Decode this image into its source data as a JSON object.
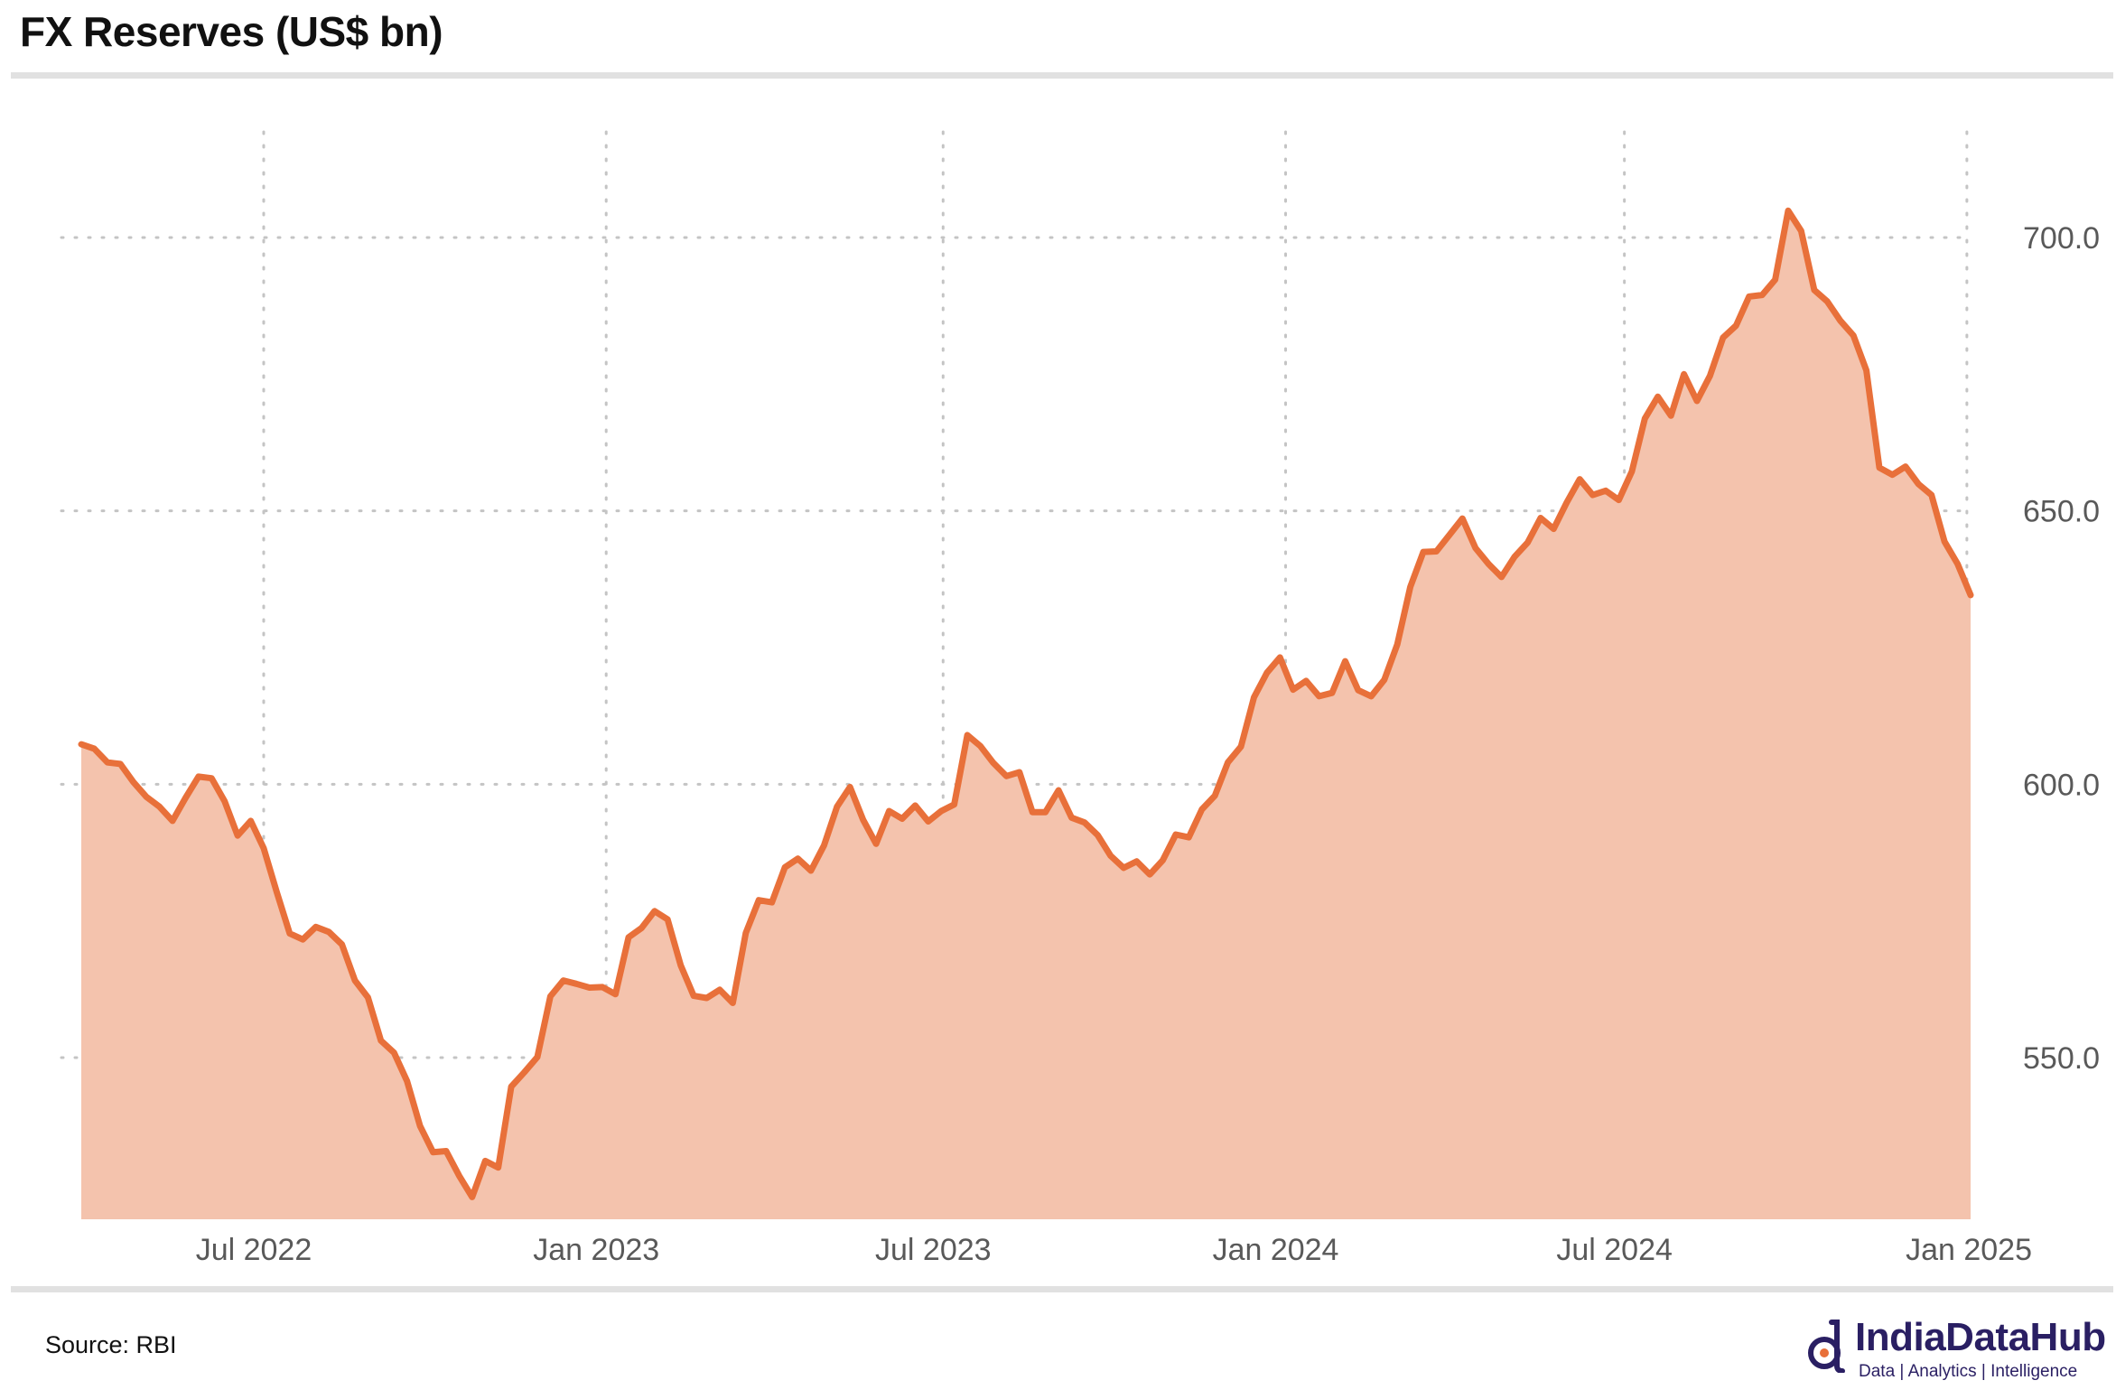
{
  "header": {
    "title": "FX Reserves (US$ bn)"
  },
  "footer": {
    "source": "Source: RBI",
    "brand": "IndiaDataHub",
    "tagline": "Data | Analytics | Intelligence"
  },
  "colors": {
    "line": "#e8703a",
    "fill": "#f4c3ad",
    "grid": "#c4c4c4",
    "axis_text": "#595959",
    "brand": "#2a1f63"
  },
  "chart_data": {
    "type": "area",
    "title": "FX Reserves (US$ bn)",
    "xlabel": "",
    "ylabel": "",
    "grid": true,
    "y_axis_side": "right",
    "ylim": [
      520,
      720
    ],
    "yticks": [
      550,
      600,
      650,
      700
    ],
    "ytick_labels": [
      "550.0",
      "600.0",
      "650.0",
      "700.0"
    ],
    "xticks": [
      "2022-07-01",
      "2023-01-01",
      "2023-07-01",
      "2024-01-01",
      "2024-07-01",
      "2025-01-01"
    ],
    "xtick_labels": [
      "Jul 2022",
      "Jan 2023",
      "Jul 2023",
      "Jan 2024",
      "Jul 2024",
      "Jan 2025"
    ],
    "xlim": [
      "2022-03-25",
      "2025-01-03"
    ],
    "series": [
      {
        "values": [
          [
            "2022-03-25",
            607.3
          ],
          [
            "2022-04-01",
            606.5
          ],
          [
            "2022-04-08",
            604.0
          ],
          [
            "2022-04-15",
            603.7
          ],
          [
            "2022-04-22",
            600.4
          ],
          [
            "2022-04-29",
            597.7
          ],
          [
            "2022-05-06",
            595.9
          ],
          [
            "2022-05-13",
            593.3
          ],
          [
            "2022-05-20",
            597.5
          ],
          [
            "2022-05-27",
            601.4
          ],
          [
            "2022-06-03",
            601.1
          ],
          [
            "2022-06-10",
            596.9
          ],
          [
            "2022-06-17",
            590.6
          ],
          [
            "2022-06-24",
            593.3
          ],
          [
            "2022-07-01",
            588.3
          ],
          [
            "2022-07-08",
            580.3
          ],
          [
            "2022-07-15",
            572.7
          ],
          [
            "2022-07-22",
            571.6
          ],
          [
            "2022-07-29",
            573.9
          ],
          [
            "2022-08-05",
            573.0
          ],
          [
            "2022-08-12",
            570.7
          ],
          [
            "2022-08-19",
            564.1
          ],
          [
            "2022-08-26",
            561.0
          ],
          [
            "2022-09-02",
            553.1
          ],
          [
            "2022-09-09",
            550.9
          ],
          [
            "2022-09-16",
            545.7
          ],
          [
            "2022-09-23",
            537.5
          ],
          [
            "2022-09-30",
            532.7
          ],
          [
            "2022-10-07",
            532.9
          ],
          [
            "2022-10-14",
            528.4
          ],
          [
            "2022-10-21",
            524.5
          ],
          [
            "2022-10-28",
            531.1
          ],
          [
            "2022-11-04",
            529.9
          ],
          [
            "2022-11-11",
            544.7
          ],
          [
            "2022-11-18",
            547.3
          ],
          [
            "2022-11-25",
            550.1
          ],
          [
            "2022-12-02",
            561.2
          ],
          [
            "2022-12-09",
            564.1
          ],
          [
            "2022-12-16",
            563.5
          ],
          [
            "2022-12-23",
            562.8
          ],
          [
            "2022-12-30",
            562.9
          ],
          [
            "2023-01-06",
            561.6
          ],
          [
            "2023-01-13",
            572.0
          ],
          [
            "2023-01-20",
            573.7
          ],
          [
            "2023-01-27",
            576.8
          ],
          [
            "2023-02-03",
            575.3
          ],
          [
            "2023-02-10",
            566.9
          ],
          [
            "2023-02-17",
            561.3
          ],
          [
            "2023-02-24",
            560.9
          ],
          [
            "2023-03-03",
            562.4
          ],
          [
            "2023-03-10",
            560.0
          ],
          [
            "2023-03-17",
            572.8
          ],
          [
            "2023-03-24",
            578.8
          ],
          [
            "2023-03-31",
            578.4
          ],
          [
            "2023-04-07",
            584.8
          ],
          [
            "2023-04-14",
            586.4
          ],
          [
            "2023-04-21",
            584.2
          ],
          [
            "2023-04-28",
            588.8
          ],
          [
            "2023-05-05",
            595.9
          ],
          [
            "2023-05-12",
            599.5
          ],
          [
            "2023-05-19",
            593.5
          ],
          [
            "2023-05-26",
            589.1
          ],
          [
            "2023-06-02",
            595.1
          ],
          [
            "2023-06-09",
            593.7
          ],
          [
            "2023-06-16",
            596.1
          ],
          [
            "2023-06-23",
            593.2
          ],
          [
            "2023-06-30",
            595.1
          ],
          [
            "2023-07-07",
            596.3
          ],
          [
            "2023-07-14",
            609.0
          ],
          [
            "2023-07-21",
            607.0
          ],
          [
            "2023-07-28",
            603.9
          ],
          [
            "2023-08-04",
            601.5
          ],
          [
            "2023-08-11",
            602.2
          ],
          [
            "2023-08-18",
            594.9
          ],
          [
            "2023-08-25",
            594.9
          ],
          [
            "2023-09-01",
            598.9
          ],
          [
            "2023-09-08",
            593.9
          ],
          [
            "2023-09-15",
            593.0
          ],
          [
            "2023-09-22",
            590.7
          ],
          [
            "2023-09-29",
            586.9
          ],
          [
            "2023-10-06",
            584.7
          ],
          [
            "2023-10-13",
            585.9
          ],
          [
            "2023-10-20",
            583.5
          ],
          [
            "2023-10-27",
            586.1
          ],
          [
            "2023-11-03",
            590.8
          ],
          [
            "2023-11-10",
            590.3
          ],
          [
            "2023-11-17",
            595.4
          ],
          [
            "2023-11-24",
            597.9
          ],
          [
            "2023-12-01",
            604.0
          ],
          [
            "2023-12-08",
            606.9
          ],
          [
            "2023-12-15",
            615.9
          ],
          [
            "2023-12-22",
            620.4
          ],
          [
            "2023-12-29",
            623.2
          ],
          [
            "2024-01-05",
            617.3
          ],
          [
            "2024-01-12",
            618.9
          ],
          [
            "2024-01-19",
            616.1
          ],
          [
            "2024-01-26",
            616.7
          ],
          [
            "2024-02-02",
            622.5
          ],
          [
            "2024-02-09",
            617.2
          ],
          [
            "2024-02-16",
            616.1
          ],
          [
            "2024-02-23",
            619.1
          ],
          [
            "2024-03-01",
            625.6
          ],
          [
            "2024-03-08",
            636.1
          ],
          [
            "2024-03-15",
            642.5
          ],
          [
            "2024-03-22",
            642.6
          ],
          [
            "2024-03-29",
            645.6
          ],
          [
            "2024-04-05",
            648.6
          ],
          [
            "2024-04-12",
            643.2
          ],
          [
            "2024-04-19",
            640.3
          ],
          [
            "2024-04-26",
            637.9
          ],
          [
            "2024-05-03",
            641.6
          ],
          [
            "2024-05-10",
            644.2
          ],
          [
            "2024-05-17",
            648.7
          ],
          [
            "2024-05-24",
            646.7
          ],
          [
            "2024-05-31",
            651.5
          ],
          [
            "2024-06-07",
            655.8
          ],
          [
            "2024-06-14",
            652.9
          ],
          [
            "2024-06-21",
            653.7
          ],
          [
            "2024-06-28",
            652.0
          ],
          [
            "2024-07-05",
            657.2
          ],
          [
            "2024-07-12",
            666.9
          ],
          [
            "2024-07-19",
            670.9
          ],
          [
            "2024-07-26",
            667.4
          ],
          [
            "2024-08-02",
            675.0
          ],
          [
            "2024-08-09",
            670.1
          ],
          [
            "2024-08-16",
            674.7
          ],
          [
            "2024-08-23",
            681.7
          ],
          [
            "2024-08-30",
            683.9
          ],
          [
            "2024-09-06",
            689.2
          ],
          [
            "2024-09-13",
            689.5
          ],
          [
            "2024-09-20",
            692.3
          ],
          [
            "2024-09-27",
            704.9
          ],
          [
            "2024-10-04",
            701.2
          ],
          [
            "2024-10-11",
            690.4
          ],
          [
            "2024-10-18",
            688.3
          ],
          [
            "2024-10-25",
            684.8
          ],
          [
            "2024-11-01",
            682.1
          ],
          [
            "2024-11-08",
            675.7
          ],
          [
            "2024-11-15",
            657.9
          ],
          [
            "2024-11-22",
            656.6
          ],
          [
            "2024-11-29",
            658.1
          ],
          [
            "2024-12-06",
            654.9
          ],
          [
            "2024-12-13",
            652.9
          ],
          [
            "2024-12-20",
            644.4
          ],
          [
            "2024-12-27",
            640.3
          ],
          [
            "2025-01-03",
            634.6
          ]
        ]
      }
    ]
  }
}
